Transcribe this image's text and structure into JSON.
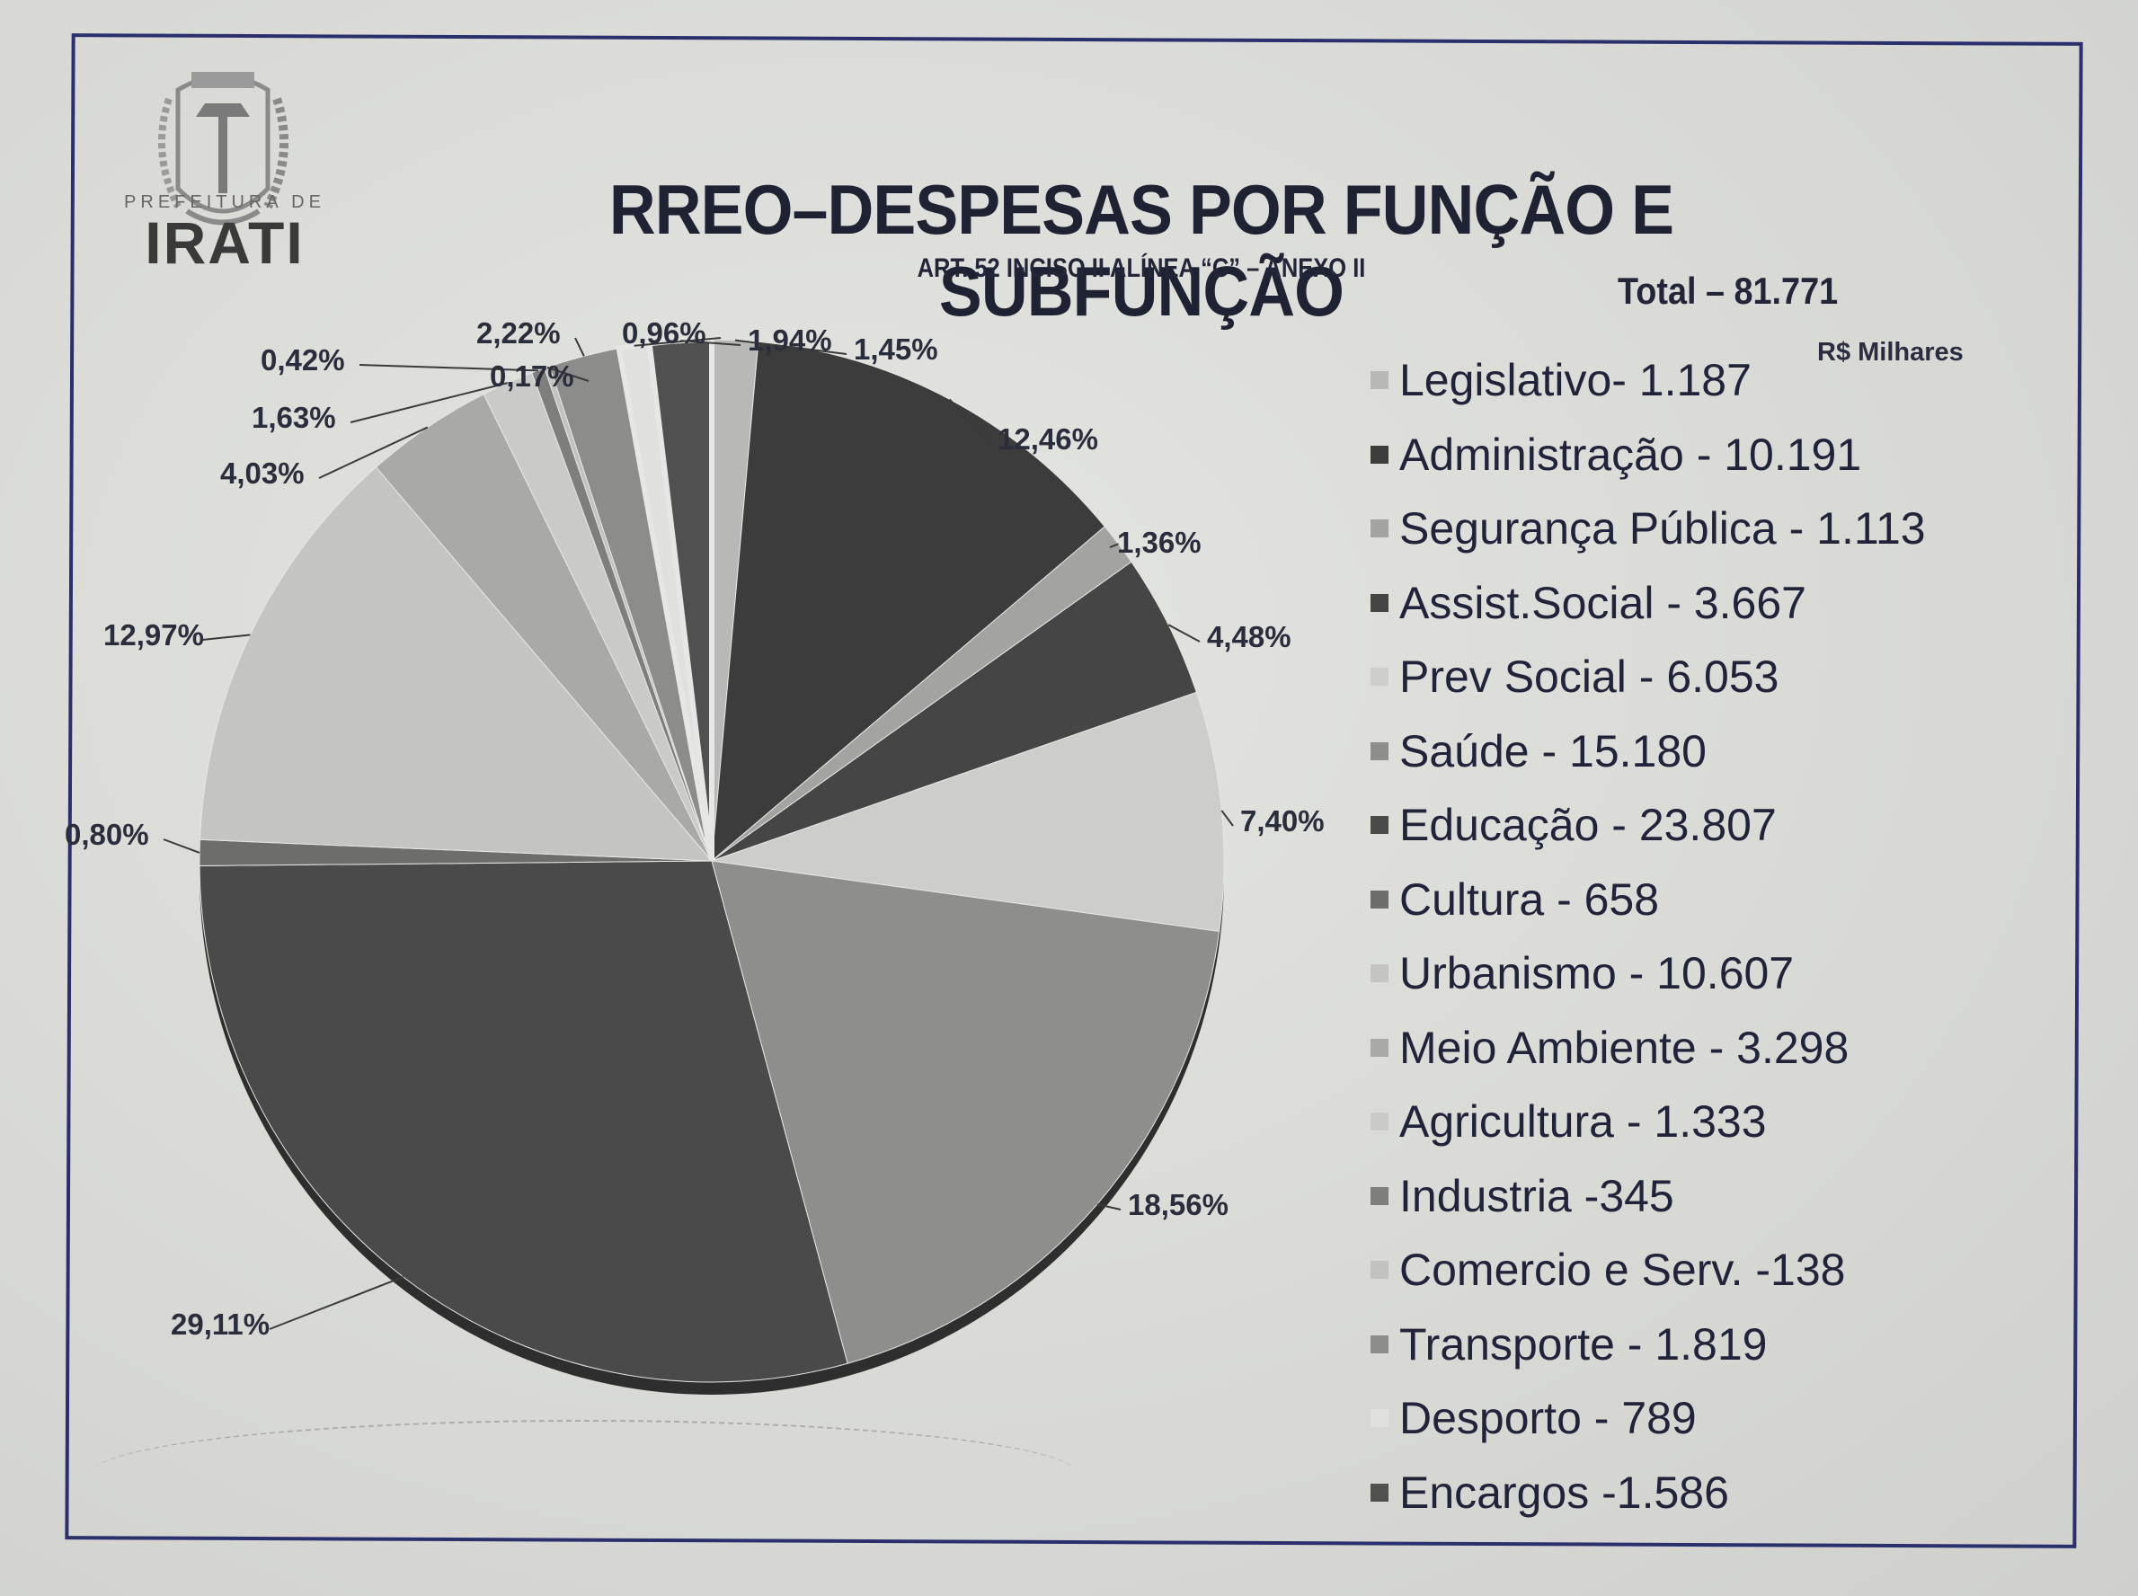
{
  "logo": {
    "top_text": "PREFEITURA DE",
    "name": "IRATI",
    "icon": "coat-of-arms-icon"
  },
  "header": {
    "title": "RREO–DESPESAS POR FUNÇÃO E SUBFUNÇÃO",
    "subtitle": "ART. 52 INCISO II ALÍNEA “C” – ANEXO II",
    "total": "Total – 81.771",
    "unit": "R$ Milhares"
  },
  "legend": {
    "items": [
      {
        "label": "Legislativo- 1.187",
        "color": "#b8b8b6"
      },
      {
        "label": "Administração - 10.191",
        "color": "#3c3c3c"
      },
      {
        "label": "Segurança Pública  - 1.113",
        "color": "#a3a3a1"
      },
      {
        "label": "Assist.Social - 3.667",
        "color": "#454545"
      },
      {
        "label": "Prev Social - 6.053",
        "color": "#cdcdcb"
      },
      {
        "label": "Saúde - 15.180",
        "color": "#8e8e8c"
      },
      {
        "label": "Educação - 23.807",
        "color": "#4a4a4a"
      },
      {
        "label": "Cultura - 658",
        "color": "#6d6d6b"
      },
      {
        "label": "Urbanismo - 10.607",
        "color": "#c4c4c2"
      },
      {
        "label": "Meio Ambiente - 3.298",
        "color": "#a9a9a7"
      },
      {
        "label": "Agricultura - 1.333",
        "color": "#cacac8"
      },
      {
        "label": "Industria -345",
        "color": "#7e7e7c"
      },
      {
        "label": "Comercio e Serv. -138",
        "color": "#c2c2c0"
      },
      {
        "label": "Transporte - 1.819",
        "color": "#8c8c8a"
      },
      {
        "label": "Desporto - 789",
        "color": "#e0e0de"
      },
      {
        "label": "Encargos -1.586",
        "color": "#505050"
      }
    ]
  },
  "chart_data": {
    "type": "pie",
    "title": "RREO–DESPESAS POR FUNÇÃO E SUBFUNÇÃO",
    "subtitle": "ART. 52 INCISO II ALÍNEA “C” – ANEXO II",
    "total": 81771,
    "unit": "R$ Milhares",
    "legend_position": "right",
    "categories": [
      "Legislativo",
      "Administração",
      "Segurança Pública",
      "Assist.Social",
      "Prev Social",
      "Saúde",
      "Educação",
      "Cultura",
      "Urbanismo",
      "Meio Ambiente",
      "Agricultura",
      "Industria",
      "Comercio e Serv.",
      "Transporte",
      "Desporto",
      "Encargos"
    ],
    "values": [
      1187,
      10191,
      1113,
      3667,
      6053,
      15180,
      23807,
      658,
      10607,
      3298,
      1333,
      345,
      138,
      1819,
      789,
      1586
    ],
    "percent_labels": [
      "1,45%",
      "12,46%",
      "1,36%",
      "4,48%",
      "7,40%",
      "18,56%",
      "29,11%",
      "0,80%",
      "12,97%",
      "4,03%",
      "1,63%",
      "0,42%",
      "0,17%",
      "2,22%",
      "0,96%",
      "1,94%"
    ],
    "percents": [
      1.45,
      12.46,
      1.36,
      4.48,
      7.4,
      18.56,
      29.11,
      0.8,
      12.97,
      4.03,
      1.63,
      0.42,
      0.17,
      2.22,
      0.96,
      1.94
    ]
  }
}
